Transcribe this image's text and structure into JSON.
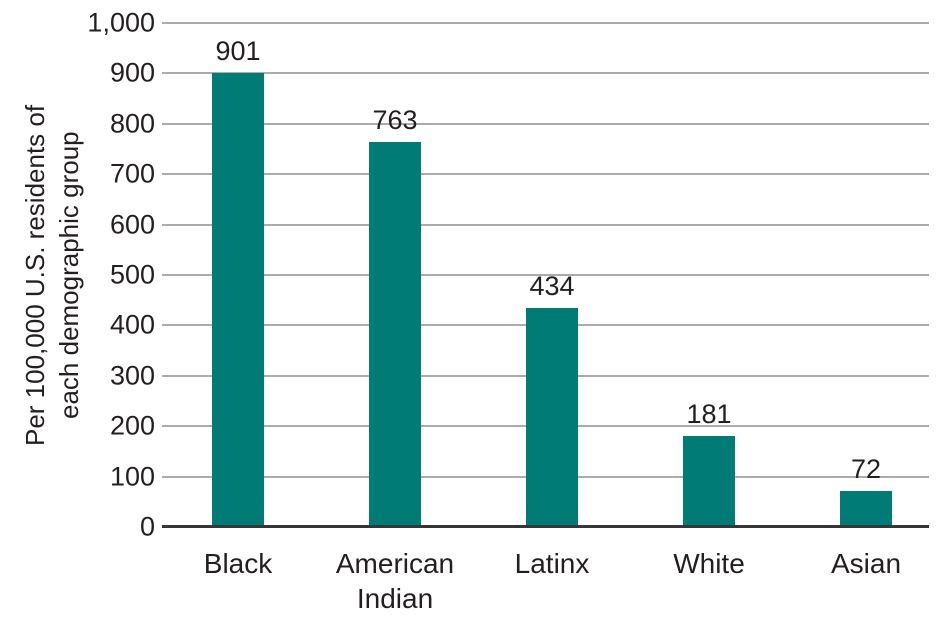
{
  "chart_data": {
    "type": "bar",
    "categories": [
      "Black",
      "American\nIndian",
      "Latinx",
      "White",
      "Asian"
    ],
    "values": [
      901,
      763,
      434,
      181,
      72
    ],
    "bar_value_labels": [
      "901",
      "763",
      "434",
      "181",
      "72"
    ],
    "title": "",
    "xlabel": "",
    "ylabel": "Per 100,000 U.S. residents of\neach demographic group",
    "ylim": [
      0,
      1000
    ],
    "yticks": [
      {
        "value": 0,
        "label": "0"
      },
      {
        "value": 100,
        "label": "100"
      },
      {
        "value": 200,
        "label": "200"
      },
      {
        "value": 300,
        "label": "300"
      },
      {
        "value": 400,
        "label": "400"
      },
      {
        "value": 500,
        "label": "500"
      },
      {
        "value": 600,
        "label": "600"
      },
      {
        "value": 700,
        "label": "700"
      },
      {
        "value": 800,
        "label": "800"
      },
      {
        "value": 900,
        "label": "900"
      },
      {
        "value": 1000,
        "label": "1,000"
      }
    ],
    "grid": "horizontal",
    "legend_position": "none"
  },
  "colors": {
    "bar": "#007b76",
    "text": "#231f20",
    "gridline": "#ababab",
    "axis_line": "#363636",
    "background": "#ffffff"
  }
}
